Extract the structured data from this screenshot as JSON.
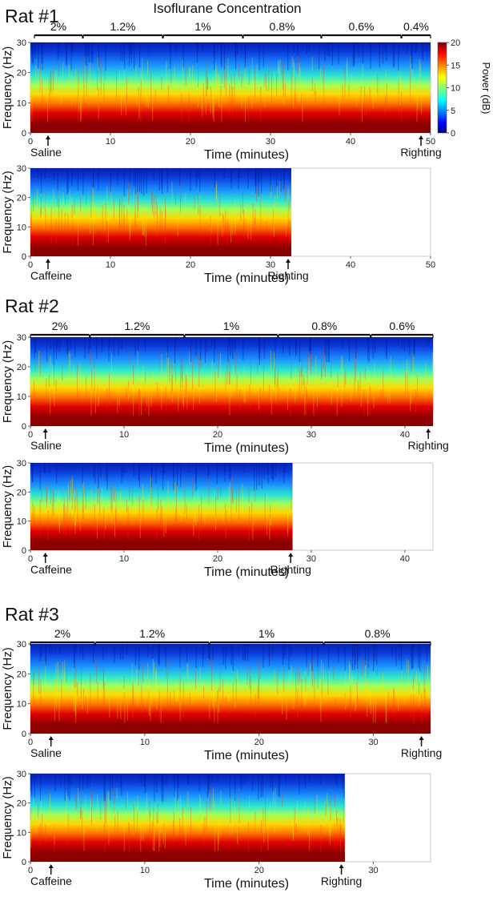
{
  "figure_title": "Isoflurane Concentration",
  "chart_data": [
    {
      "type": "heatmap",
      "id": "rat1-saline",
      "rat_label": "Rat #1",
      "ylabel": "Frequency (Hz)",
      "xlabel": "Time (minutes)",
      "xlim": [
        0,
        50
      ],
      "ylim": [
        0,
        30
      ],
      "xticks": [
        0,
        10,
        20,
        30,
        40,
        50
      ],
      "yticks": [
        0,
        10,
        20,
        30
      ],
      "data_end_minutes": 50,
      "concentration_segments": [
        {
          "label": "2%",
          "start": 0.5,
          "end": 6.5
        },
        {
          "label": "1.2%",
          "start": 6.6,
          "end": 16.5
        },
        {
          "label": "1%",
          "start": 16.6,
          "end": 26.5
        },
        {
          "label": "0.8%",
          "start": 26.6,
          "end": 36.3
        },
        {
          "label": "0.6%",
          "start": 36.4,
          "end": 46.3
        },
        {
          "label": "0.4%",
          "start": 46.4,
          "end": 50
        }
      ],
      "events": [
        {
          "label": "Saline",
          "time": 2.2
        },
        {
          "label": "Righting",
          "time": 48.8
        }
      ]
    },
    {
      "type": "heatmap",
      "id": "rat1-caffeine",
      "ylabel": "Frequency (Hz)",
      "xlabel": "Time (minutes)",
      "xlim": [
        0,
        50
      ],
      "ylim": [
        0,
        30
      ],
      "xticks": [
        0,
        10,
        20,
        30,
        40,
        50
      ],
      "yticks": [
        0,
        10,
        20,
        30
      ],
      "data_end_minutes": 32.6,
      "events": [
        {
          "label": "Caffeine",
          "time": 2.2
        },
        {
          "label": "Righting",
          "time": 32.2
        }
      ]
    },
    {
      "type": "heatmap",
      "id": "rat2-saline",
      "rat_label": "Rat #2",
      "ylabel": "Frequency (Hz)",
      "xlabel": "Time (minutes)",
      "xlim": [
        0,
        43
      ],
      "ylim": [
        0,
        30
      ],
      "xticks": [
        0,
        10,
        20,
        30,
        40
      ],
      "yticks": [
        0,
        10,
        20,
        30
      ],
      "data_end_minutes": 43,
      "concentration_segments": [
        {
          "label": "2%",
          "start": 0,
          "end": 6.3
        },
        {
          "label": "1.2%",
          "start": 6.4,
          "end": 16.4
        },
        {
          "label": "1%",
          "start": 16.5,
          "end": 26.4
        },
        {
          "label": "0.8%",
          "start": 26.5,
          "end": 36.3
        },
        {
          "label": "0.6%",
          "start": 36.4,
          "end": 43
        }
      ],
      "events": [
        {
          "label": "Saline",
          "time": 1.6
        },
        {
          "label": "Righting",
          "time": 42.5
        }
      ]
    },
    {
      "type": "heatmap",
      "id": "rat2-caffeine",
      "ylabel": "Frequency (Hz)",
      "xlabel": "Time (minutes)",
      "xlim": [
        0,
        43
      ],
      "ylim": [
        0,
        30
      ],
      "xticks": [
        0,
        10,
        20,
        30,
        40
      ],
      "yticks": [
        0,
        10,
        20,
        30
      ],
      "data_end_minutes": 28,
      "events": [
        {
          "label": "Caffeine",
          "time": 1.6
        },
        {
          "label": "Righting",
          "time": 27.8
        }
      ]
    },
    {
      "type": "heatmap",
      "id": "rat3-saline",
      "rat_label": "Rat #3",
      "ylabel": "Frequency (Hz)",
      "xlabel": "Time (minutes)",
      "xlim": [
        0,
        35
      ],
      "ylim": [
        0,
        30
      ],
      "xticks": [
        0,
        10,
        20,
        30
      ],
      "yticks": [
        0,
        10,
        20,
        30
      ],
      "data_end_minutes": 35,
      "concentration_segments": [
        {
          "label": "2%",
          "start": 0,
          "end": 5.6
        },
        {
          "label": "1.2%",
          "start": 5.7,
          "end": 15.6
        },
        {
          "label": "1%",
          "start": 15.7,
          "end": 25.6
        },
        {
          "label": "0.8%",
          "start": 25.7,
          "end": 35
        }
      ],
      "events": [
        {
          "label": "Saline",
          "time": 1.8
        },
        {
          "label": "Righting",
          "time": 34.2
        }
      ]
    },
    {
      "type": "heatmap",
      "id": "rat3-caffeine",
      "ylabel": "Frequency (Hz)",
      "xlabel": "Time (minutes)",
      "xlim": [
        0,
        35
      ],
      "ylim": [
        0,
        30
      ],
      "xticks": [
        0,
        10,
        20,
        30
      ],
      "yticks": [
        0,
        10,
        20,
        30
      ],
      "data_end_minutes": 27.5,
      "events": [
        {
          "label": "Caffeine",
          "time": 1.8
        },
        {
          "label": "Righting",
          "time": 27.2
        }
      ]
    }
  ],
  "colorbar": {
    "label": "Power (dB)",
    "ticks": [
      0,
      5,
      10,
      15,
      20
    ],
    "range": [
      0,
      20
    ],
    "colormap": "jet",
    "colors": [
      "#00007f",
      "#0000ff",
      "#00ffff",
      "#ffff00",
      "#ff0000",
      "#7f0000"
    ]
  }
}
